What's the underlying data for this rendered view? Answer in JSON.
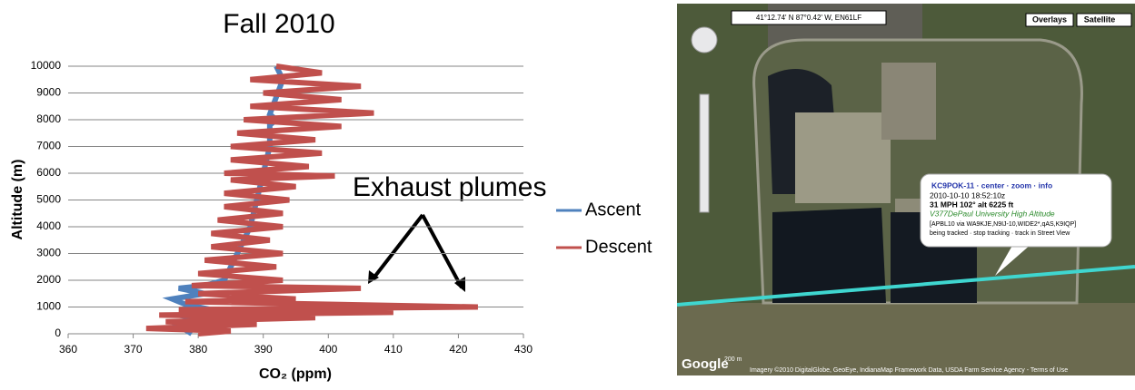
{
  "chart_data": {
    "type": "scatter",
    "title": "Fall 2010",
    "xlabel": "CO₂ (ppm)",
    "ylabel": "Altitude (m)",
    "annotation": "Exhaust plumes",
    "xlim": [
      360,
      430
    ],
    "xticks": [
      360,
      370,
      380,
      390,
      400,
      410,
      420,
      430
    ],
    "ylim": [
      0,
      10000
    ],
    "yticks": [
      0,
      1000,
      2000,
      3000,
      4000,
      5000,
      6000,
      7000,
      8000,
      9000,
      10000
    ],
    "grid": true,
    "legend": "right",
    "series": [
      {
        "name": "Ascent",
        "color": "#4f81bd",
        "x": [
          379,
          377,
          381,
          377,
          382,
          378,
          376,
          381,
          377,
          381,
          384,
          386,
          388,
          389,
          390,
          391,
          391,
          392,
          391,
          393,
          392
        ],
        "values": [
          0,
          300,
          500,
          700,
          900,
          1100,
          1300,
          1500,
          1700,
          1800,
          2000,
          3000,
          4000,
          5000,
          6000,
          7000,
          7800,
          8000,
          8200,
          9500,
          10000
        ]
      },
      {
        "name": "Descent",
        "color": "#c0504d",
        "x": [
          392,
          399,
          388,
          405,
          390,
          402,
          388,
          407,
          387,
          402,
          386,
          398,
          385,
          399,
          385,
          397,
          384,
          401,
          385,
          395,
          384,
          394,
          384,
          393,
          383,
          393,
          382,
          391,
          382,
          393,
          381,
          392,
          380,
          393,
          379,
          405,
          380,
          395,
          378,
          423,
          377,
          410,
          374,
          398,
          375,
          389,
          372,
          385,
          380
        ],
        "values": [
          10000,
          9750,
          9500,
          9250,
          9000,
          8750,
          8500,
          8250,
          8000,
          7750,
          7500,
          7250,
          7000,
          6750,
          6500,
          6250,
          6000,
          5900,
          5750,
          5500,
          5250,
          5000,
          4750,
          4500,
          4250,
          4000,
          3750,
          3500,
          3250,
          3000,
          2750,
          2500,
          2250,
          2000,
          1800,
          1700,
          1500,
          1300,
          1200,
          1000,
          900,
          800,
          700,
          600,
          450,
          350,
          200,
          100,
          0
        ]
      }
    ]
  },
  "map": {
    "coords": "41°12.74' N 87°0.42' W, EN61LF",
    "overlays": "Overlays",
    "satellite": "Satellite",
    "popup": [
      "KC9POK-11 · center · zoom · info",
      "2010-10-10 18:52:10z",
      "31 MPH 102° alt 6225 ft",
      "V377DePaul University High Altitude",
      "[APBL10 via WA9KJE,N9IJ-10,WIDE2*,qAS,K9IQP]",
      "being tracked · stop tracking · track in Street View"
    ],
    "logo": "Google",
    "scale": "200 m",
    "credits": "Imagery ©2010 DigitalGlobe, GeoEye, IndianaMap Framework Data, USDA Farm Service Agency - Terms of Use"
  }
}
